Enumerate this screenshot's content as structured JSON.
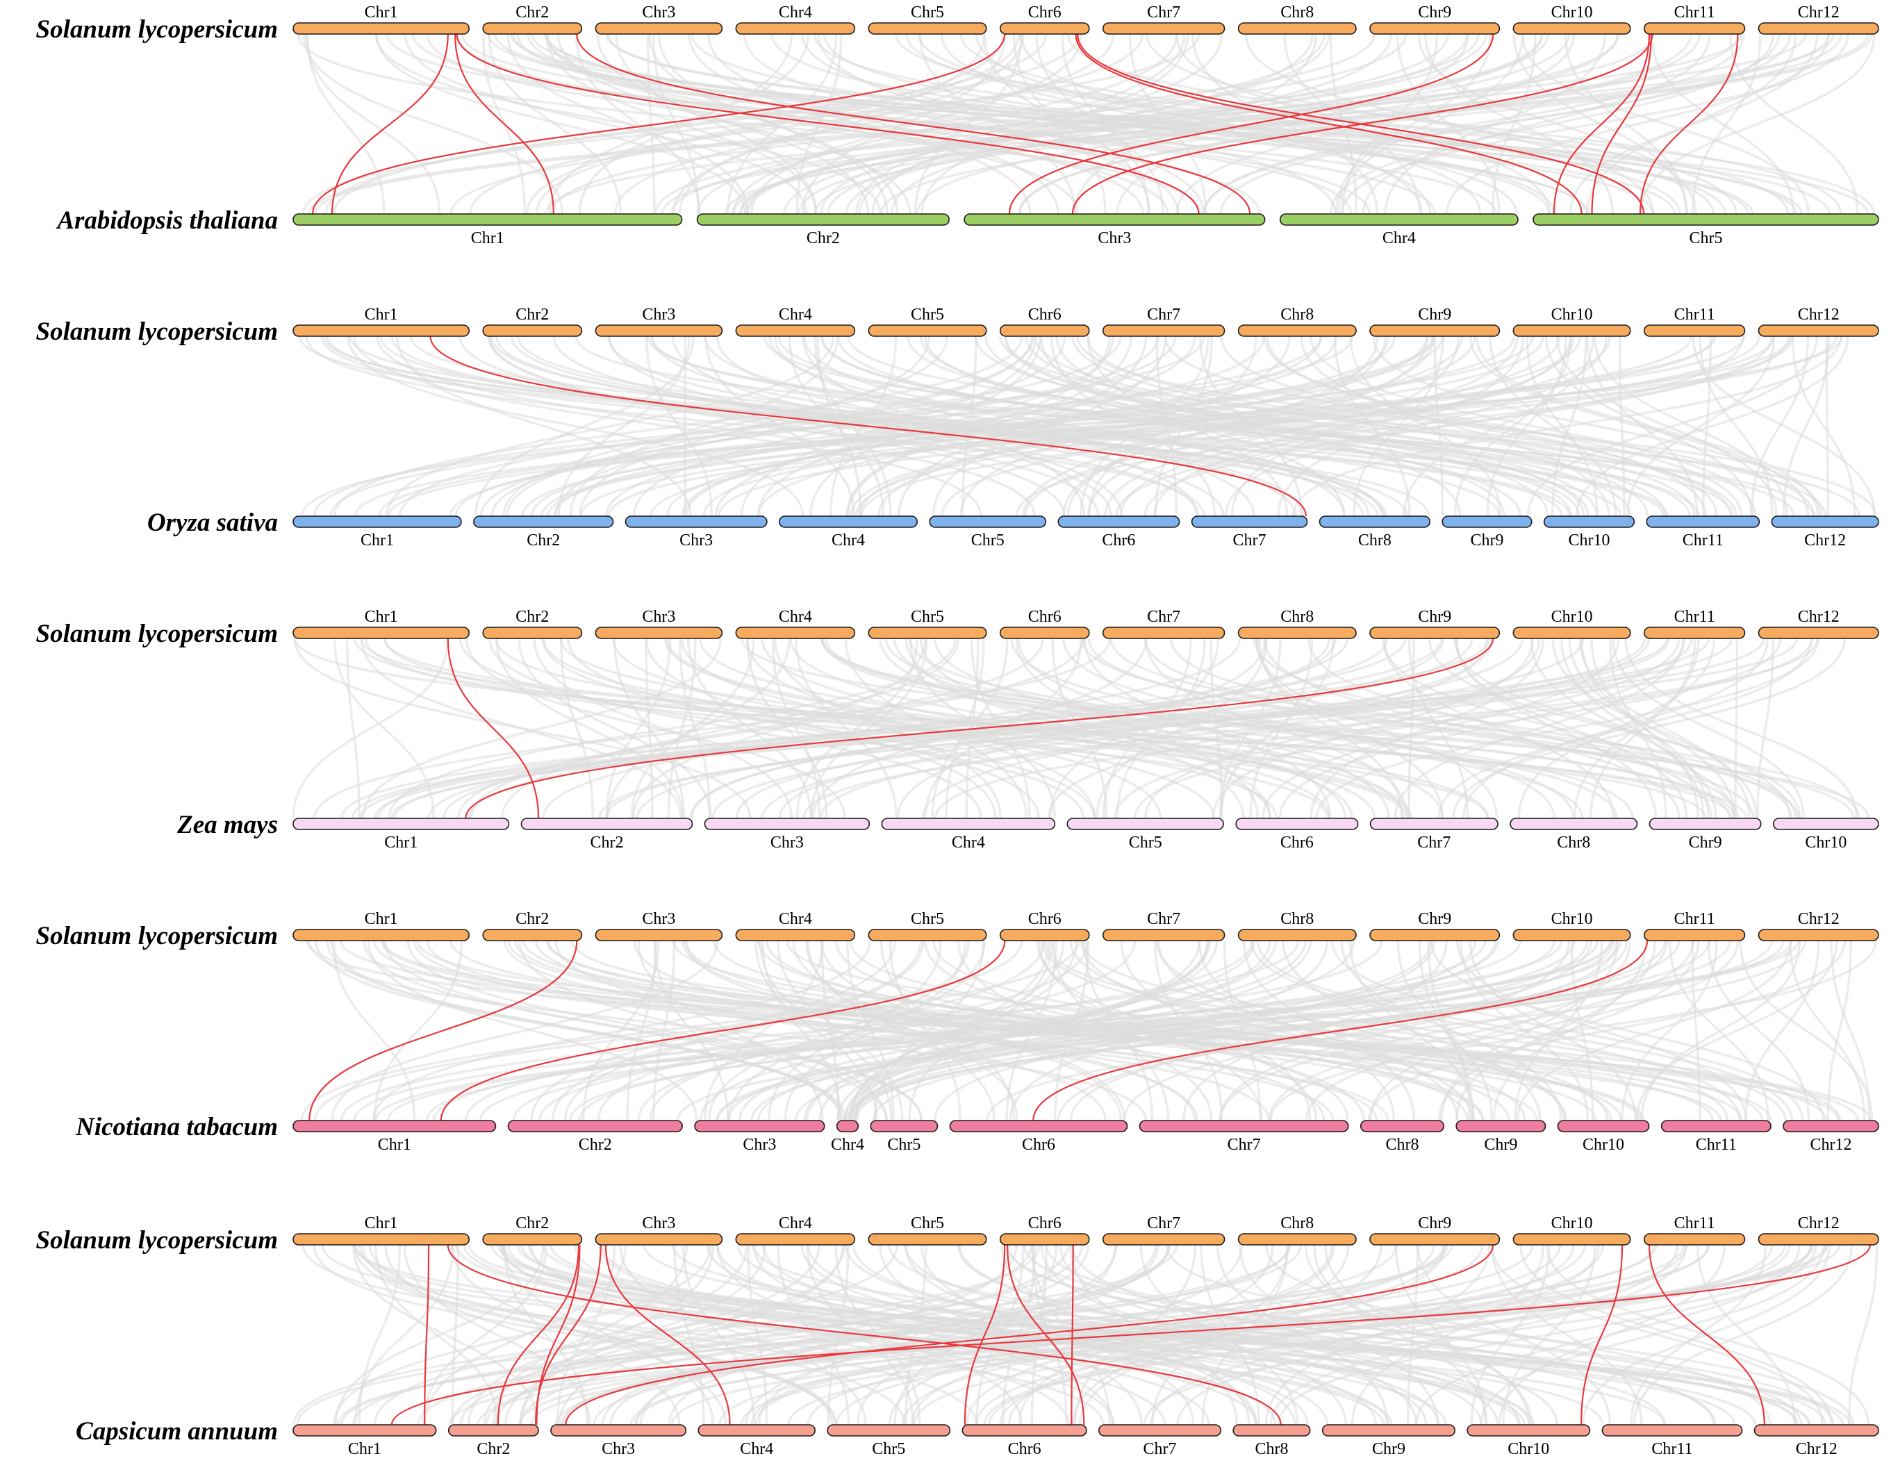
{
  "colors": {
    "reference": "#f6ab5f",
    "arabidopsis": "#9bcf63",
    "oryza": "#7fb1ec",
    "zea": "#f9d8f4",
    "nicotiana": "#f07ca0",
    "capsicum": "#f7a092",
    "background_links": "#dcdcdc",
    "highlight_links": "#e8383d"
  },
  "reference": {
    "species": "Solanum lycopersicum",
    "chromosomes": [
      {
        "name": "Chr1",
        "length": 98.5
      },
      {
        "name": "Chr2",
        "length": 55.3
      },
      {
        "name": "Chr3",
        "length": 70.8
      },
      {
        "name": "Chr4",
        "length": 66.5
      },
      {
        "name": "Chr5",
        "length": 65.9
      },
      {
        "name": "Chr6",
        "length": 49.8
      },
      {
        "name": "Chr7",
        "length": 68.0
      },
      {
        "name": "Chr8",
        "length": 65.9
      },
      {
        "name": "Chr9",
        "length": 72.5
      },
      {
        "name": "Chr10",
        "length": 65.5
      },
      {
        "name": "Chr11",
        "length": 56.3
      },
      {
        "name": "Chr12",
        "length": 67.1
      }
    ]
  },
  "panels": [
    {
      "species": "Arabidopsis thaliana",
      "color": "arabidopsis",
      "chromosomes": [
        {
          "name": "Chr1",
          "length": 30.4
        },
        {
          "name": "Chr2",
          "length": 19.7
        },
        {
          "name": "Chr3",
          "length": 23.5
        },
        {
          "name": "Chr4",
          "length": 18.6
        },
        {
          "name": "Chr5",
          "length": 27.0
        }
      ],
      "background_density": 140,
      "highlights": [
        {
          "ref": "Chr1",
          "ref_pos": 0.88,
          "target": "Chr1",
          "target_pos": 0.1
        },
        {
          "ref": "Chr1",
          "ref_pos": 0.92,
          "target": "Chr1",
          "target_pos": 0.67
        },
        {
          "ref": "Chr1",
          "ref_pos": 0.93,
          "target": "Chr3",
          "target_pos": 0.78
        },
        {
          "ref": "Chr2",
          "ref_pos": 0.95,
          "target": "Chr3",
          "target_pos": 0.95
        },
        {
          "ref": "Chr6",
          "ref_pos": 0.05,
          "target": "Chr1",
          "target_pos": 0.05
        },
        {
          "ref": "Chr6",
          "ref_pos": 0.85,
          "target": "Chr5",
          "target_pos": 0.14
        },
        {
          "ref": "Chr6",
          "ref_pos": 0.87,
          "target": "Chr5",
          "target_pos": 0.32
        },
        {
          "ref": "Chr9",
          "ref_pos": 0.95,
          "target": "Chr3",
          "target_pos": 0.15
        },
        {
          "ref": "Chr11",
          "ref_pos": 0.08,
          "target": "Chr3",
          "target_pos": 0.36
        },
        {
          "ref": "Chr11",
          "ref_pos": 0.05,
          "target": "Chr5",
          "target_pos": 0.06
        },
        {
          "ref": "Chr11",
          "ref_pos": 0.07,
          "target": "Chr5",
          "target_pos": 0.17
        },
        {
          "ref": "Chr11",
          "ref_pos": 0.93,
          "target": "Chr5",
          "target_pos": 0.31
        }
      ]
    },
    {
      "species": "Oryza sativa",
      "color": "oryza",
      "chromosomes": [
        {
          "name": "Chr1",
          "length": 43.3
        },
        {
          "name": "Chr2",
          "length": 35.9
        },
        {
          "name": "Chr3",
          "length": 36.4
        },
        {
          "name": "Chr4",
          "length": 35.5
        },
        {
          "name": "Chr5",
          "length": 29.9
        },
        {
          "name": "Chr6",
          "length": 31.2
        },
        {
          "name": "Chr7",
          "length": 29.7
        },
        {
          "name": "Chr8",
          "length": 28.4
        },
        {
          "name": "Chr9",
          "length": 23.0
        },
        {
          "name": "Chr10",
          "length": 23.2
        },
        {
          "name": "Chr11",
          "length": 29.0
        },
        {
          "name": "Chr12",
          "length": 27.5
        }
      ],
      "background_density": 170,
      "highlights": [
        {
          "ref": "Chr1",
          "ref_pos": 0.78,
          "target": "Chr7",
          "target_pos": 0.99
        }
      ]
    },
    {
      "species": "Zea mays",
      "color": "zea",
      "chromosomes": [
        {
          "name": "Chr1",
          "length": 308
        },
        {
          "name": "Chr2",
          "length": 244
        },
        {
          "name": "Chr3",
          "length": 235
        },
        {
          "name": "Chr4",
          "length": 247
        },
        {
          "name": "Chr5",
          "length": 223
        },
        {
          "name": "Chr6",
          "length": 174
        },
        {
          "name": "Chr7",
          "length": 182
        },
        {
          "name": "Chr8",
          "length": 181
        },
        {
          "name": "Chr9",
          "length": 159
        },
        {
          "name": "Chr10",
          "length": 150
        }
      ],
      "background_density": 160,
      "highlights": [
        {
          "ref": "Chr1",
          "ref_pos": 0.88,
          "target": "Chr2",
          "target_pos": 0.1
        },
        {
          "ref": "Chr9",
          "ref_pos": 0.95,
          "target": "Chr1",
          "target_pos": 0.8
        }
      ]
    },
    {
      "species": "Nicotiana tabacum",
      "color": "nicotiana",
      "chromosomes": [
        {
          "name": "Chr1",
          "length": 200
        },
        {
          "name": "Chr2",
          "length": 172
        },
        {
          "name": "Chr3",
          "length": 128
        },
        {
          "name": "Chr4",
          "length": 21
        },
        {
          "name": "Chr5",
          "length": 66
        },
        {
          "name": "Chr6",
          "length": 175
        },
        {
          "name": "Chr7",
          "length": 206
        },
        {
          "name": "Chr8",
          "length": 82
        },
        {
          "name": "Chr9",
          "length": 88
        },
        {
          "name": "Chr10",
          "length": 90
        },
        {
          "name": "Chr11",
          "length": 108
        },
        {
          "name": "Chr12",
          "length": 94
        }
      ],
      "background_density": 180,
      "highlights": [
        {
          "ref": "Chr2",
          "ref_pos": 0.95,
          "target": "Chr1",
          "target_pos": 0.08
        },
        {
          "ref": "Chr6",
          "ref_pos": 0.05,
          "target": "Chr1",
          "target_pos": 0.73
        },
        {
          "ref": "Chr11",
          "ref_pos": 0.03,
          "target": "Chr6",
          "target_pos": 0.47
        }
      ]
    },
    {
      "species": "Capsicum annuum",
      "color": "capsicum",
      "chromosomes": [
        {
          "name": "Chr1",
          "length": 272
        },
        {
          "name": "Chr2",
          "length": 171
        },
        {
          "name": "Chr3",
          "length": 257
        },
        {
          "name": "Chr4",
          "length": 222
        },
        {
          "name": "Chr5",
          "length": 233
        },
        {
          "name": "Chr6",
          "length": 236
        },
        {
          "name": "Chr7",
          "length": 232
        },
        {
          "name": "Chr8",
          "length": 146
        },
        {
          "name": "Chr9",
          "length": 252
        },
        {
          "name": "Chr10",
          "length": 233
        },
        {
          "name": "Chr11",
          "length": 266
        },
        {
          "name": "Chr12",
          "length": 236
        }
      ],
      "background_density": 180,
      "highlights": [
        {
          "ref": "Chr1",
          "ref_pos": 0.77,
          "target": "Chr1",
          "target_pos": 0.92
        },
        {
          "ref": "Chr1",
          "ref_pos": 0.88,
          "target": "Chr8",
          "target_pos": 0.62
        },
        {
          "ref": "Chr2",
          "ref_pos": 0.97,
          "target": "Chr2",
          "target_pos": 0.55
        },
        {
          "ref": "Chr2",
          "ref_pos": 0.98,
          "target": "Chr2",
          "target_pos": 0.98
        },
        {
          "ref": "Chr3",
          "ref_pos": 0.04,
          "target": "Chr2",
          "target_pos": 0.97
        },
        {
          "ref": "Chr3",
          "ref_pos": 0.08,
          "target": "Chr4",
          "target_pos": 0.27
        },
        {
          "ref": "Chr6",
          "ref_pos": 0.05,
          "target": "Chr6",
          "target_pos": 0.02
        },
        {
          "ref": "Chr6",
          "ref_pos": 0.08,
          "target": "Chr6",
          "target_pos": 0.98
        },
        {
          "ref": "Chr6",
          "ref_pos": 0.82,
          "target": "Chr6",
          "target_pos": 0.88
        },
        {
          "ref": "Chr9",
          "ref_pos": 0.95,
          "target": "Chr3",
          "target_pos": 0.11
        },
        {
          "ref": "Chr10",
          "ref_pos": 0.93,
          "target": "Chr10",
          "target_pos": 0.93
        },
        {
          "ref": "Chr11",
          "ref_pos": 0.05,
          "target": "Chr12",
          "target_pos": 0.08
        },
        {
          "ref": "Chr12",
          "ref_pos": 0.93,
          "target": "Chr1",
          "target_pos": 0.69
        }
      ]
    }
  ]
}
